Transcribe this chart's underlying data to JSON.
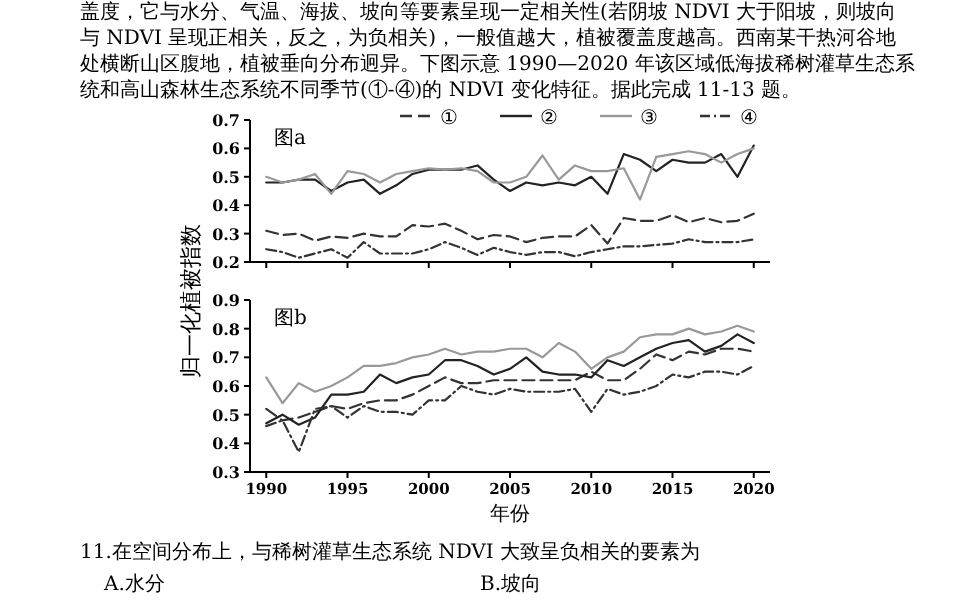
{
  "chart_data": [
    {
      "type": "line",
      "title": "图a",
      "x": [
        1990,
        1991,
        1992,
        1993,
        1994,
        1995,
        1996,
        1997,
        1998,
        1999,
        2000,
        2001,
        2002,
        2003,
        2004,
        2005,
        2006,
        2007,
        2008,
        2009,
        2010,
        2011,
        2012,
        2013,
        2014,
        2015,
        2016,
        2017,
        2018,
        2019,
        2020
      ],
      "annotations": [
        "盖度，它与水分、气温、海拔、坡向等要素呈现一定相关性(若阴坡 NDVI 大于阳坡，则坡向",
        "与 NDVI 呈现正相关，反之，为负相关)，一般值越大，植被覆盖度越高。西南某干热河谷地",
        "处横断山区腹地，植被垂向分布迥异。下图示意 1990—2020 年该区域低海拔稀树灌草生态系",
        "统和高山森林生态系统不同季节(①-④)的 NDVI 变化特征。据此完成 11-13 题。"
      ],
      "xlim": [
        1989,
        2021
      ],
      "xticks": [
        1990,
        1995,
        2000,
        2005,
        2010,
        2015,
        2020
      ],
      "ylim": [
        0.2,
        0.7
      ],
      "yticks": [
        0.2,
        0.3,
        0.4,
        0.5,
        0.6,
        0.7
      ],
      "tick_labels": "y",
      "legend": "top",
      "grid": false,
      "series": [
        {
          "name": "①",
          "color": "#333333",
          "line_style": "dashed",
          "values": [
            0.31,
            0.295,
            0.3,
            0.275,
            0.29,
            0.285,
            0.3,
            0.29,
            0.29,
            0.33,
            0.325,
            0.335,
            0.31,
            0.28,
            0.295,
            0.29,
            0.27,
            0.285,
            0.29,
            0.29,
            0.33,
            0.265,
            0.355,
            0.345,
            0.345,
            0.365,
            0.34,
            0.355,
            0.34,
            0.345,
            0.37
          ]
        },
        {
          "name": "②",
          "color": "#222222",
          "line_style": "solid",
          "values": [
            0.48,
            0.48,
            0.49,
            0.49,
            0.45,
            0.48,
            0.49,
            0.44,
            0.47,
            0.51,
            0.525,
            0.525,
            0.525,
            0.54,
            0.49,
            0.45,
            0.48,
            0.47,
            0.48,
            0.47,
            0.5,
            0.44,
            0.58,
            0.56,
            0.52,
            0.56,
            0.55,
            0.55,
            0.58,
            0.5,
            0.61
          ]
        },
        {
          "name": "③",
          "color": "#999999",
          "line_style": "solid",
          "values": [
            0.5,
            0.48,
            0.49,
            0.51,
            0.44,
            0.52,
            0.51,
            0.48,
            0.51,
            0.52,
            0.53,
            0.525,
            0.53,
            0.52,
            0.48,
            0.48,
            0.5,
            0.575,
            0.49,
            0.54,
            0.52,
            0.52,
            0.53,
            0.42,
            0.57,
            0.58,
            0.59,
            0.58,
            0.55,
            0.58,
            0.6
          ]
        },
        {
          "name": "④",
          "color": "#333333",
          "line_style": "dotted",
          "values": [
            0.245,
            0.235,
            0.215,
            0.23,
            0.245,
            0.215,
            0.27,
            0.23,
            0.23,
            0.23,
            0.245,
            0.27,
            0.25,
            0.225,
            0.25,
            0.235,
            0.225,
            0.235,
            0.235,
            0.22,
            0.235,
            0.245,
            0.255,
            0.255,
            0.26,
            0.265,
            0.28,
            0.27,
            0.27,
            0.27,
            0.28
          ]
        }
      ]
    },
    {
      "type": "line",
      "title": "图b",
      "ylabel": "归一化植被指数",
      "xlabel": "年份",
      "x": [
        1990,
        1991,
        1992,
        1993,
        1994,
        1995,
        1996,
        1997,
        1998,
        1999,
        2000,
        2001,
        2002,
        2003,
        2004,
        2005,
        2006,
        2007,
        2008,
        2009,
        2010,
        2011,
        2012,
        2013,
        2014,
        2015,
        2016,
        2017,
        2018,
        2019,
        2020
      ],
      "annotations": [
        "11.在空间分布上，与稀树灌草生态系统  NDVI 大致呈负相关的要素为",
        "A.水分",
        "B.坡向"
      ],
      "xlim": [
        1989,
        2021
      ],
      "xticks": [
        1990,
        1995,
        2000,
        2005,
        2010,
        2015,
        2020
      ],
      "ylim": [
        0.3,
        0.9
      ],
      "yticks": [
        0.3,
        0.4,
        0.5,
        0.6,
        0.7,
        0.8,
        0.9
      ],
      "grid": false,
      "series": [
        {
          "color": "#333333",
          "line_style": "dashed",
          "values": [
            0.52,
            0.48,
            0.49,
            0.51,
            0.53,
            0.52,
            0.54,
            0.55,
            0.55,
            0.57,
            0.6,
            0.63,
            0.61,
            0.61,
            0.62,
            0.62,
            0.62,
            0.62,
            0.62,
            0.62,
            0.65,
            0.62,
            0.62,
            0.66,
            0.71,
            0.69,
            0.72,
            0.71,
            0.73,
            0.73,
            0.72
          ]
        },
        {
          "color": "#222222",
          "line_style": "solid",
          "values": [
            0.47,
            0.5,
            0.465,
            0.49,
            0.57,
            0.57,
            0.58,
            0.64,
            0.61,
            0.63,
            0.64,
            0.69,
            0.69,
            0.67,
            0.64,
            0.66,
            0.7,
            0.65,
            0.64,
            0.64,
            0.63,
            0.69,
            0.67,
            0.7,
            0.73,
            0.75,
            0.76,
            0.72,
            0.74,
            0.78,
            0.75
          ]
        },
        {
          "color": "#999999",
          "line_style": "solid",
          "values": [
            0.63,
            0.54,
            0.61,
            0.58,
            0.6,
            0.63,
            0.67,
            0.67,
            0.68,
            0.7,
            0.71,
            0.73,
            0.71,
            0.72,
            0.72,
            0.73,
            0.73,
            0.7,
            0.75,
            0.72,
            0.66,
            0.7,
            0.72,
            0.77,
            0.78,
            0.78,
            0.8,
            0.78,
            0.79,
            0.81,
            0.79
          ]
        },
        {
          "color": "#333333",
          "line_style": "dotted",
          "values": [
            0.46,
            0.48,
            0.37,
            0.52,
            0.53,
            0.49,
            0.53,
            0.51,
            0.51,
            0.5,
            0.55,
            0.55,
            0.6,
            0.58,
            0.57,
            0.59,
            0.58,
            0.58,
            0.58,
            0.59,
            0.51,
            0.59,
            0.57,
            0.58,
            0.6,
            0.64,
            0.63,
            0.65,
            0.65,
            0.64,
            0.67
          ]
        }
      ]
    }
  ]
}
